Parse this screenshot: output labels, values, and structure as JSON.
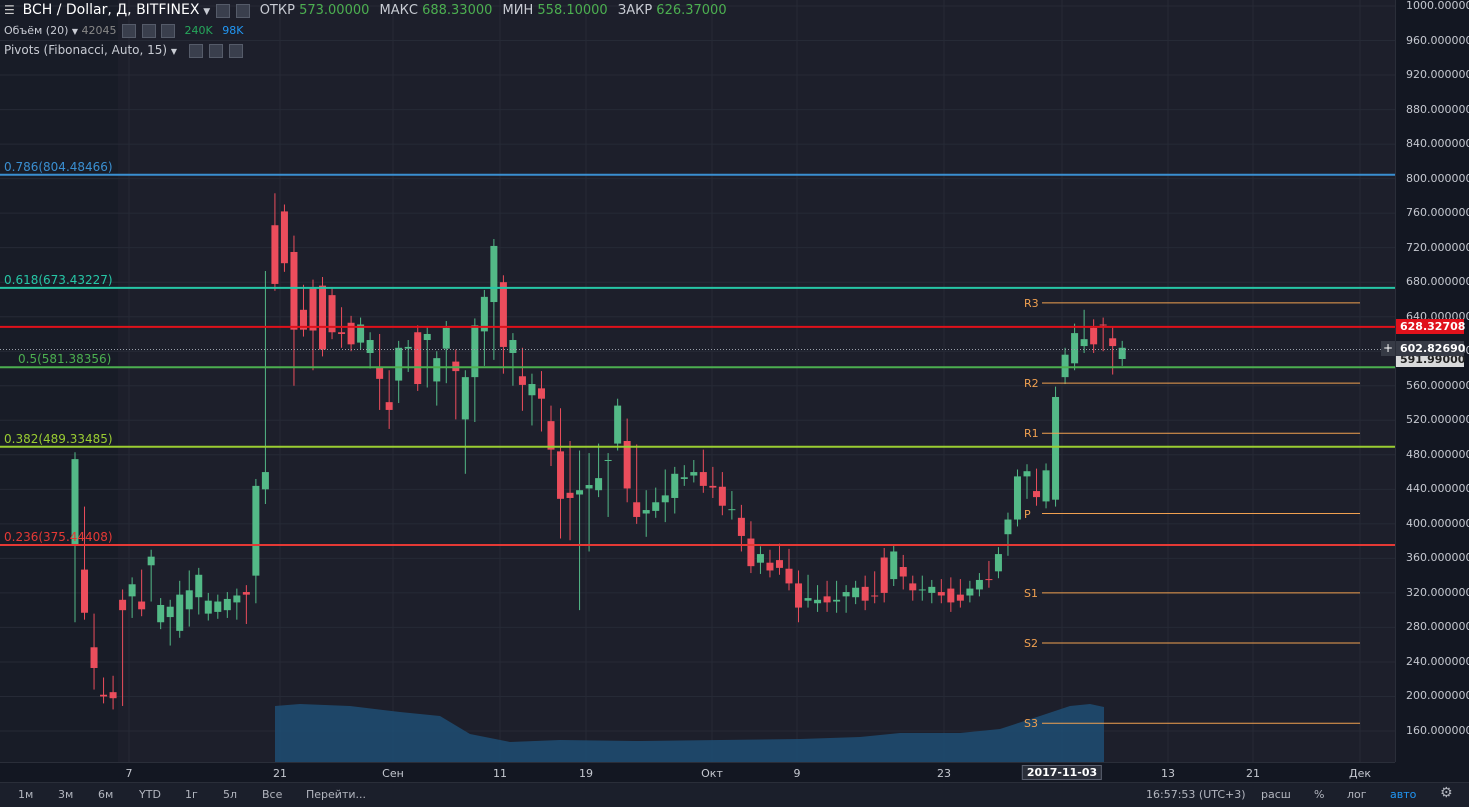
{
  "header": {
    "symbol": "BCH / Dollar, Д, BITFINEX",
    "open_label": "ОТКР",
    "open": "573.00000",
    "high_label": "МАКС",
    "high": "688.33000",
    "low_label": "МИН",
    "low": "558.10000",
    "close_label": "ЗАКР",
    "close": "626.37000"
  },
  "indicators": [
    {
      "name": "Объём (20)",
      "values": [
        "42045",
        "240K",
        "98K"
      ]
    },
    {
      "name": "Pivots (Fibonacci, Auto, 15)"
    }
  ],
  "y_axis": {
    "ticks": [
      "1000.000000",
      "960.000000",
      "920.000000",
      "880.000000",
      "840.000000",
      "800.000000",
      "760.000000",
      "720.000000",
      "680.000000",
      "640.000000",
      "600.000000",
      "560.000000",
      "520.000000",
      "480.000000",
      "440.000000",
      "400.000000",
      "360.000000",
      "320.000000",
      "280.000000",
      "240.000000",
      "200.000000",
      "160.000000"
    ]
  },
  "x_axis": {
    "ticks": [
      "7",
      "21",
      "Сен",
      "11",
      "19",
      "Окт",
      "9",
      "23",
      "2017-11-03",
      "13",
      "21",
      "Дек"
    ]
  },
  "price_tags": {
    "red": "628.32708",
    "gray": "602.82690",
    "last": "591.99000",
    "plus": "+"
  },
  "fib_levels": [
    {
      "label": "0.786(804.48466)",
      "price": 804.48466,
      "color": "#3a8fd1"
    },
    {
      "label": "0.618(673.43227)",
      "price": 673.43227,
      "color": "#26c6a6"
    },
    {
      "label": "0.5(581.38356)",
      "price": 581.38356,
      "color": "#4caf50"
    },
    {
      "label": "0.382(489.33485)",
      "price": 489.33485,
      "color": "#9acd32"
    },
    {
      "label": "0.236(375.44408)",
      "price": 375.44408,
      "color": "#e53935"
    }
  ],
  "pivots": [
    {
      "label": "R3",
      "price": 656
    },
    {
      "label": "R2",
      "price": 563
    },
    {
      "label": "R1",
      "price": 505
    },
    {
      "label": "P",
      "price": 412
    },
    {
      "label": "S1",
      "price": 320
    },
    {
      "label": "S2",
      "price": 262
    },
    {
      "label": "S3",
      "price": 169
    }
  ],
  "chart_data": {
    "type": "candlestick",
    "ylim": [
      160,
      1000
    ],
    "candles": [
      [
        375,
        356,
        475,
        294
      ],
      [
        347,
        412,
        297,
        303
      ],
      [
        257,
        288,
        233,
        216
      ],
      [
        202,
        214,
        200,
        203
      ],
      [
        205,
        216,
        198,
        193
      ],
      [
        312,
        316,
        300,
        197
      ],
      [
        316,
        325,
        330,
        299
      ],
      [
        310,
        339,
        301,
        309
      ],
      [
        352,
        329,
        362,
        318
      ],
      [
        286,
        292,
        306,
        287
      ],
      [
        292,
        274,
        304,
        267
      ],
      [
        276,
        326,
        318,
        295
      ],
      [
        301,
        338,
        323,
        289
      ],
      [
        315,
        303,
        341,
        312
      ],
      [
        296,
        312,
        311,
        303
      ],
      [
        298,
        303,
        310,
        305
      ],
      [
        300,
        307,
        313,
        299
      ],
      [
        309,
        304,
        317,
        297
      ],
      [
        321,
        302,
        318,
        292
      ],
      [
        340,
        355,
        444,
        316
      ],
      [
        440,
        685,
        460,
        431
      ],
      [
        746,
        775,
        678,
        719
      ],
      [
        762,
        700,
        702,
        708
      ],
      [
        715,
        726,
        625,
        568
      ],
      [
        648,
        669,
        625,
        629
      ],
      [
        673,
        675,
        624,
        586
      ],
      [
        676,
        678,
        602,
        609
      ],
      [
        665,
        664,
        622,
        622
      ],
      [
        622,
        643,
        620,
        612
      ],
      [
        633,
        618,
        608,
        610
      ],
      [
        610,
        622,
        631,
        617
      ],
      [
        598,
        614,
        613,
        588
      ],
      [
        582,
        612,
        568,
        540
      ],
      [
        541,
        570,
        532,
        518
      ],
      [
        566,
        560,
        604,
        548
      ],
      [
        603,
        595,
        605,
        584
      ],
      [
        622,
        622,
        562,
        589
      ],
      [
        613,
        610,
        620,
        566
      ],
      [
        565,
        565,
        592,
        545
      ],
      [
        603,
        590,
        627,
        571
      ],
      [
        588,
        594,
        577,
        529
      ],
      [
        521,
        514,
        570,
        466
      ],
      [
        570,
        526,
        630,
        549
      ],
      [
        623,
        600,
        663,
        591
      ],
      [
        657,
        630,
        722,
        598
      ],
      [
        680,
        660,
        605,
        582
      ],
      [
        598,
        606,
        613,
        568
      ],
      [
        571,
        596,
        561,
        539
      ],
      [
        549,
        566,
        562,
        522
      ],
      [
        557,
        569,
        545,
        515
      ],
      [
        519,
        529,
        486,
        475
      ],
      [
        484,
        526,
        429,
        391
      ],
      [
        436,
        488,
        430,
        389
      ],
      [
        434,
        477,
        439,
        308
      ],
      [
        441,
        474,
        445,
        376
      ],
      [
        439,
        485,
        453,
        449
      ],
      [
        474,
        473,
        474,
        416
      ],
      [
        493,
        493,
        537,
        495
      ],
      [
        496,
        514,
        441,
        433
      ],
      [
        425,
        484,
        408,
        420
      ],
      [
        412,
        431,
        416,
        393
      ],
      [
        415,
        434,
        425,
        429
      ],
      [
        425,
        455,
        433,
        410
      ],
      [
        430,
        455,
        458,
        420
      ],
      [
        452,
        460,
        454,
        454
      ],
      [
        456,
        466,
        460,
        464
      ],
      [
        460,
        478,
        444,
        444
      ],
      [
        444,
        458,
        442,
        438
      ],
      [
        443,
        452,
        421,
        418
      ],
      [
        416,
        430,
        417,
        413
      ],
      [
        407,
        414,
        386,
        376
      ],
      [
        383,
        395,
        351,
        353
      ],
      [
        355,
        366,
        365,
        350
      ],
      [
        355,
        362,
        346,
        352
      ],
      [
        358,
        369,
        349,
        356
      ],
      [
        348,
        363,
        331,
        335
      ],
      [
        331,
        338,
        303,
        294
      ],
      [
        311,
        333,
        314,
        311
      ],
      [
        308,
        321,
        312,
        306
      ],
      [
        316,
        326,
        309,
        306
      ],
      [
        310,
        326,
        312,
        305
      ],
      [
        316,
        318,
        321,
        305
      ],
      [
        315,
        326,
        326,
        321
      ],
      [
        327,
        332,
        311,
        308
      ],
      [
        317,
        337,
        316,
        316
      ],
      [
        361,
        364,
        320,
        317
      ],
      [
        336,
        358,
        368,
        361
      ],
      [
        350,
        356,
        339,
        332
      ],
      [
        331,
        332,
        323,
        319
      ],
      [
        323,
        332,
        324,
        319
      ],
      [
        320,
        323,
        327,
        316
      ],
      [
        321,
        328,
        317,
        316
      ],
      [
        325,
        330,
        309,
        306
      ],
      [
        318,
        328,
        311,
        312
      ],
      [
        317,
        326,
        325,
        321
      ],
      [
        324,
        324,
        335,
        327
      ],
      [
        336,
        349,
        335,
        334
      ],
      [
        345,
        357,
        365,
        358
      ],
      [
        388,
        371,
        405,
        390
      ],
      [
        405,
        439,
        455,
        453
      ],
      [
        455,
        437,
        461,
        446
      ],
      [
        438,
        456,
        431,
        429
      ],
      [
        426,
        435,
        462,
        430
      ],
      [
        428,
        531,
        547,
        551
      ],
      [
        570,
        575,
        596,
        574
      ],
      [
        586,
        606,
        621,
        624
      ],
      [
        606,
        625,
        614,
        640
      ],
      [
        627,
        629,
        608,
        606
      ],
      [
        631,
        622,
        630,
        608
      ],
      [
        615,
        621,
        606,
        581
      ],
      [
        591,
        592,
        604,
        597
      ]
    ],
    "volume": []
  },
  "bottom_bar": {
    "ranges": [
      "1м",
      "3м",
      "6м",
      "YTD",
      "1г",
      "5л",
      "Все"
    ],
    "goto": "Перейти...",
    "time": "16:57:53 (UTC+3)",
    "options": [
      "расш",
      "%",
      "лог",
      "авто"
    ]
  }
}
